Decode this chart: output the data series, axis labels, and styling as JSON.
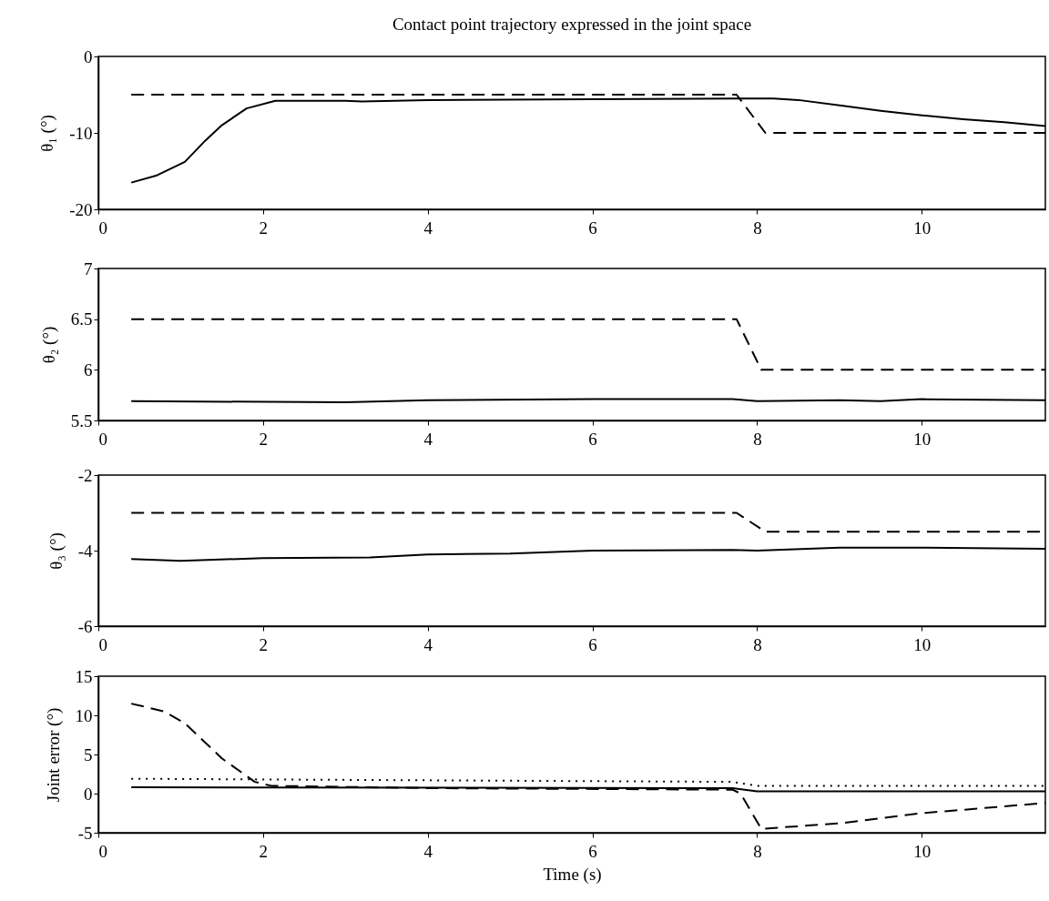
{
  "chart_data": [
    {
      "type": "line",
      "title": "Contact point trajectory expressed in the joint space",
      "ylabel": "θ₁ (°)",
      "xlim": [
        0,
        11.5
      ],
      "xticks": [
        0,
        2,
        4,
        6,
        8,
        10
      ],
      "ylim": [
        -20,
        0
      ],
      "yticks": [
        -20,
        -10,
        0
      ],
      "grid": false,
      "series": [
        {
          "color": "#000000",
          "line_style": "solid",
          "x": [
            0.4,
            0.7,
            1.05,
            1.3,
            1.5,
            1.8,
            2.15,
            3,
            3.2,
            4,
            6,
            7.8,
            8.2,
            8.5,
            9,
            9.5,
            10,
            10.5,
            11,
            11.5
          ],
          "values": [
            -16.5,
            -15.6,
            -13.8,
            -11,
            -9,
            -6.8,
            -5.8,
            -5.8,
            -5.9,
            -5.7,
            -5.6,
            -5.5,
            -5.5,
            -5.7,
            -6.4,
            -7.1,
            -7.7,
            -8.2,
            -8.6,
            -9.1
          ]
        },
        {
          "color": "#000000",
          "line_style": "dashed",
          "x": [
            0.4,
            7.75,
            8.1,
            11.5
          ],
          "values": [
            -5,
            -5,
            -10,
            -10
          ]
        }
      ]
    },
    {
      "type": "line",
      "ylabel": "θ₂ (°)",
      "xlim": [
        0,
        11.5
      ],
      "xticks": [
        0,
        2,
        4,
        6,
        8,
        10
      ],
      "ylim": [
        5.5,
        7
      ],
      "yticks": [
        5.5,
        6,
        6.5,
        7
      ],
      "grid": false,
      "series": [
        {
          "color": "#000000",
          "line_style": "solid",
          "x": [
            0.4,
            3,
            4,
            6,
            7.7,
            8,
            9,
            9.5,
            10,
            11.5
          ],
          "values": [
            5.69,
            5.68,
            5.7,
            5.71,
            5.71,
            5.69,
            5.7,
            5.69,
            5.71,
            5.7
          ]
        },
        {
          "color": "#000000",
          "line_style": "dashed",
          "x": [
            0.4,
            7.75,
            8.05,
            11.5
          ],
          "values": [
            6.5,
            6.5,
            6,
            6
          ]
        }
      ]
    },
    {
      "type": "line",
      "ylabel": "θ₃ (°)",
      "xlim": [
        0,
        11.5
      ],
      "xticks": [
        0,
        2,
        4,
        6,
        8,
        10
      ],
      "ylim": [
        -6,
        -2
      ],
      "yticks": [
        -6,
        -4,
        -2
      ],
      "grid": false,
      "series": [
        {
          "color": "#000000",
          "line_style": "solid",
          "x": [
            0.4,
            1,
            2,
            3.3,
            4,
            5,
            6,
            7.7,
            8,
            9,
            10,
            11.5
          ],
          "values": [
            -4.22,
            -4.27,
            -4.2,
            -4.18,
            -4.1,
            -4.08,
            -4,
            -3.98,
            -4,
            -3.92,
            -3.92,
            -3.95
          ]
        },
        {
          "color": "#000000",
          "line_style": "dashed",
          "x": [
            0.4,
            7.75,
            8.1,
            11.5
          ],
          "values": [
            -3,
            -3,
            -3.5,
            -3.5
          ]
        }
      ]
    },
    {
      "type": "line",
      "xlabel": "Time (s)",
      "ylabel": "Joint error (°)",
      "xlim": [
        0,
        11.5
      ],
      "xticks": [
        0,
        2,
        4,
        6,
        8,
        10
      ],
      "ylim": [
        -5,
        15
      ],
      "yticks": [
        -5,
        0,
        5,
        10,
        15
      ],
      "grid": false,
      "series": [
        {
          "color": "#000000",
          "line_style": "solid",
          "x": [
            0.4,
            7.7,
            8,
            11.5
          ],
          "values": [
            0.8,
            0.7,
            0.3,
            0.3
          ]
        },
        {
          "color": "#000000",
          "line_style": "dashed",
          "x": [
            0.4,
            0.8,
            1.05,
            1.5,
            1.9,
            2.1,
            4,
            7.7,
            7.8,
            8.05,
            9,
            10,
            11.5
          ],
          "values": [
            11.5,
            10.5,
            9,
            4.5,
            1.5,
            1,
            0.7,
            0.5,
            0,
            -4.5,
            -3.8,
            -2.5,
            -1.2
          ]
        },
        {
          "color": "#000000",
          "line_style": "dotted",
          "x": [
            0.4,
            7.7,
            8,
            11.5
          ],
          "values": [
            1.9,
            1.5,
            1,
            1
          ]
        }
      ]
    }
  ]
}
